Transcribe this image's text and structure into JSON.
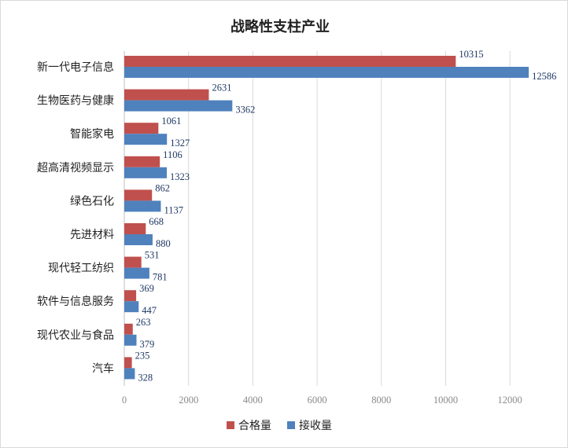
{
  "chart_data": {
    "type": "bar",
    "orientation": "horizontal",
    "title": "战略性支柱产业",
    "categories": [
      "新一代电子信息",
      "生物医药与健康",
      "智能家电",
      "超高清视频显示",
      "绿色石化",
      "先进材料",
      "现代轻工纺织",
      "软件与信息服务",
      "现代农业与食品",
      "汽车"
    ],
    "series": [
      {
        "name": "合格量",
        "color": "#C0504D",
        "values": [
          10315,
          2631,
          1061,
          1106,
          862,
          668,
          531,
          369,
          263,
          235
        ]
      },
      {
        "name": "接收量",
        "color": "#4F81BD",
        "values": [
          12586,
          3362,
          1327,
          1323,
          1137,
          880,
          781,
          447,
          379,
          328
        ]
      }
    ],
    "xlim": [
      0,
      13000
    ],
    "xticks": [
      0,
      2000,
      4000,
      6000,
      8000,
      10000,
      12000
    ],
    "xtick_labels": [
      "0",
      "2000",
      "4000",
      "6000",
      "8000",
      "10000",
      "12000"
    ],
    "grid": true,
    "legend_position": "bottom"
  }
}
